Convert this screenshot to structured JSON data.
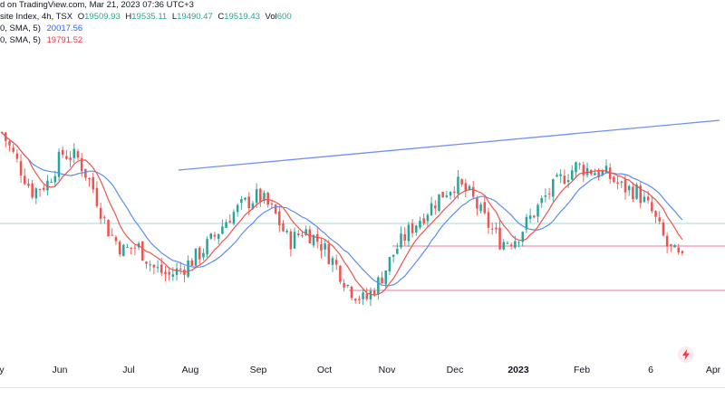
{
  "header": {
    "line1_prefix": "d on TradingView.com, Mar 21, 2023 07:36 UTC+3",
    "line2_name": "site Index, 4h, TSX",
    "ohlc": [
      {
        "key": "O",
        "value": "19509.93"
      },
      {
        "key": "H",
        "value": "19535.11"
      },
      {
        "key": "L",
        "value": "19490.47"
      },
      {
        "key": "C",
        "value": "19519.43"
      },
      {
        "key": "Vol",
        "value": "600"
      }
    ],
    "sma_rows": [
      {
        "label": "0, SMA, 5)",
        "value": "20017.56",
        "color": "#2962ff"
      },
      {
        "label": "0, SMA, 5)",
        "value": "19791.52",
        "color": "#f23645"
      }
    ]
  },
  "colors": {
    "up": "#26a69a",
    "down": "#ef5350",
    "sma_fast": "#ef5350",
    "sma_slow": "#5b8def",
    "trendline": "#6f8ff5",
    "support": "#f48fb1",
    "price_line": "#80cbc4"
  },
  "chart_data": {
    "type": "candlestick",
    "xlabels": [
      "y",
      "Jun",
      "Jul",
      "Aug",
      "Sep",
      "Oct",
      "Nov",
      "Dec",
      "2023",
      "Feb",
      "6",
      "Apr"
    ],
    "xlabel_bold": [
      "2023"
    ],
    "approx_price_range": [
      18600,
      21600
    ],
    "close_path": [
      [
        "May",
        21050
      ],
      [
        "May",
        20700
      ],
      [
        "May",
        20350
      ],
      [
        "May",
        20450
      ],
      [
        "Jun",
        20800
      ],
      [
        "Jun",
        20750
      ],
      [
        "Jun",
        20400
      ],
      [
        "Jun",
        19900
      ],
      [
        "Jun",
        19650
      ],
      [
        "Jul",
        19700
      ],
      [
        "Jul",
        19450
      ],
      [
        "Jul",
        19350
      ],
      [
        "Jul",
        19450
      ],
      [
        "Jul",
        19600
      ],
      [
        "Aug",
        19800
      ],
      [
        "Aug",
        20050
      ],
      [
        "Aug",
        20200
      ],
      [
        "Sep",
        20300
      ],
      [
        "Sep",
        20100
      ],
      [
        "Sep",
        19750
      ],
      [
        "Sep",
        19900
      ],
      [
        "Oct",
        19750
      ],
      [
        "Oct",
        19500
      ],
      [
        "Oct",
        19200
      ],
      [
        "Oct",
        19050
      ],
      [
        "Oct",
        19300
      ],
      [
        "Nov",
        19650
      ],
      [
        "Nov",
        19900
      ],
      [
        "Nov",
        20100
      ],
      [
        "Nov",
        20300
      ],
      [
        "Dec",
        20450
      ],
      [
        "Dec",
        20300
      ],
      [
        "Dec",
        20000
      ],
      [
        "Dec",
        19750
      ],
      [
        "Dec",
        19800
      ],
      [
        "2023",
        20050
      ],
      [
        "2023",
        20300
      ],
      [
        "2023",
        20500
      ],
      [
        "Feb",
        20650
      ],
      [
        "Feb",
        20600
      ],
      [
        "Feb",
        20550
      ],
      [
        "Feb",
        20400
      ],
      [
        "Feb",
        20350
      ],
      [
        "Mar",
        20100
      ],
      [
        "Mar",
        19700
      ],
      [
        "Mar",
        19520
      ]
    ],
    "overlays": [
      {
        "name": "SMA 20017.56",
        "color": "#2962ff"
      },
      {
        "name": "SMA 19791.52",
        "color": "#f23645"
      }
    ]
  }
}
